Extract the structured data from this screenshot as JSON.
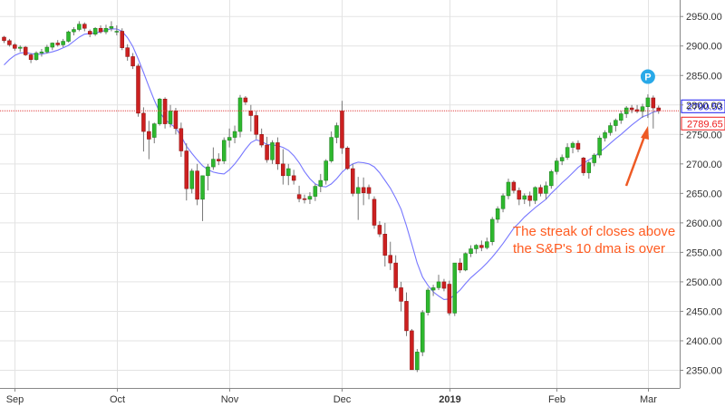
{
  "chart_data": {
    "type": "candlestick",
    "title": "",
    "xlabel": "",
    "ylabel": "",
    "ylim": [
      2320,
      2978
    ],
    "x_tick_labels": [
      "Sep",
      "Oct",
      "Nov",
      "Dec",
      "2019",
      "Feb",
      "Mar"
    ],
    "x_tick_bar_index": [
      2,
      21,
      42,
      63,
      83,
      103,
      120
    ],
    "y_tick_labels": [
      "2350.00",
      "2400.00",
      "2450.00",
      "2500.00",
      "2550.00",
      "2600.00",
      "2650.00",
      "2700.00",
      "2750.00",
      "2800.00",
      "2850.00",
      "2900.00",
      "2950.00"
    ],
    "y_ticks": [
      2350,
      2400,
      2450,
      2500,
      2550,
      2600,
      2650,
      2700,
      2750,
      2800,
      2850,
      2900,
      2950
    ],
    "grid": true,
    "series": [
      {
        "type": "candlestick",
        "up_color": "#2eb82e",
        "down_color": "#cc2020",
        "bars": [
          [
            2915,
            2917,
            2905,
            2909
          ],
          [
            2909,
            2912,
            2899,
            2902
          ],
          [
            2902,
            2905,
            2892,
            2896
          ],
          [
            2896,
            2901,
            2890,
            2898
          ],
          [
            2898,
            2900,
            2883,
            2885
          ],
          [
            2885,
            2888,
            2871,
            2877
          ],
          [
            2877,
            2891,
            2875,
            2888
          ],
          [
            2888,
            2895,
            2882,
            2890
          ],
          [
            2890,
            2902,
            2887,
            2898
          ],
          [
            2898,
            2906,
            2893,
            2905
          ],
          [
            2905,
            2910,
            2899,
            2902
          ],
          [
            2902,
            2912,
            2898,
            2908
          ],
          [
            2908,
            2926,
            2906,
            2924
          ],
          [
            2924,
            2932,
            2918,
            2928
          ],
          [
            2928,
            2942,
            2925,
            2937
          ],
          [
            2937,
            2940,
            2925,
            2930
          ],
          [
            2925,
            2928,
            2915,
            2920
          ],
          [
            2920,
            2932,
            2917,
            2930
          ],
          [
            2930,
            2935,
            2921,
            2924
          ],
          [
            2924,
            2936,
            2920,
            2930
          ],
          [
            2930,
            2942,
            2925,
            2933
          ],
          [
            2925,
            2935,
            2918,
            2925
          ],
          [
            2925,
            2930,
            2893,
            2897
          ],
          [
            2897,
            2903,
            2875,
            2882
          ],
          [
            2882,
            2888,
            2861,
            2866
          ],
          [
            2866,
            2870,
            2780,
            2786
          ],
          [
            2786,
            2796,
            2721,
            2755
          ],
          [
            2755,
            2773,
            2708,
            2742
          ],
          [
            2745,
            2770,
            2735,
            2768
          ],
          [
            2768,
            2812,
            2765,
            2810
          ],
          [
            2810,
            2813,
            2760,
            2768
          ],
          [
            2768,
            2800,
            2762,
            2790
          ],
          [
            2790,
            2795,
            2750,
            2760
          ],
          [
            2760,
            2770,
            2712,
            2722
          ],
          [
            2722,
            2735,
            2638,
            2658
          ],
          [
            2658,
            2692,
            2650,
            2688
          ],
          [
            2688,
            2700,
            2630,
            2640
          ],
          [
            2640,
            2680,
            2603,
            2680
          ],
          [
            2680,
            2700,
            2655,
            2695
          ],
          [
            2695,
            2728,
            2690,
            2708
          ],
          [
            2708,
            2718,
            2698,
            2705
          ],
          [
            2705,
            2745,
            2700,
            2740
          ],
          [
            2740,
            2760,
            2728,
            2745
          ],
          [
            2745,
            2765,
            2735,
            2755
          ],
          [
            2755,
            2817,
            2745,
            2812
          ],
          [
            2812,
            2815,
            2800,
            2805
          ],
          [
            2790,
            2800,
            2755,
            2782
          ],
          [
            2782,
            2790,
            2742,
            2750
          ],
          [
            2750,
            2760,
            2728,
            2732
          ],
          [
            2732,
            2746,
            2702,
            2707
          ],
          [
            2707,
            2740,
            2700,
            2736
          ],
          [
            2736,
            2745,
            2690,
            2700
          ],
          [
            2700,
            2725,
            2665,
            2680
          ],
          [
            2680,
            2700,
            2664,
            2692
          ],
          [
            2680,
            2690,
            2665,
            2672
          ],
          [
            2648,
            2663,
            2635,
            2641
          ],
          [
            2641,
            2648,
            2633,
            2640
          ],
          [
            2640,
            2652,
            2632,
            2645
          ],
          [
            2645,
            2666,
            2637,
            2662
          ],
          [
            2662,
            2683,
            2652,
            2672
          ],
          [
            2672,
            2708,
            2665,
            2705
          ],
          [
            2705,
            2755,
            2702,
            2745
          ],
          [
            2745,
            2770,
            2735,
            2765
          ],
          [
            2790,
            2807,
            2717,
            2727
          ],
          [
            2727,
            2730,
            2690,
            2692
          ],
          [
            2692,
            2700,
            2645,
            2650
          ],
          [
            2650,
            2678,
            2605,
            2660
          ],
          [
            2660,
            2677,
            2630,
            2651
          ],
          [
            2660,
            2665,
            2640,
            2650
          ],
          [
            2640,
            2645,
            2590,
            2596
          ],
          [
            2596,
            2603,
            2576,
            2581
          ],
          [
            2581,
            2600,
            2526,
            2545
          ],
          [
            2545,
            2568,
            2520,
            2532
          ],
          [
            2532,
            2545,
            2484,
            2490
          ],
          [
            2490,
            2500,
            2450,
            2467
          ],
          [
            2467,
            2482,
            2408,
            2417
          ],
          [
            2417,
            2420,
            2351,
            2351
          ],
          [
            2351,
            2386,
            2347,
            2381
          ],
          [
            2381,
            2452,
            2374,
            2448
          ],
          [
            2448,
            2490,
            2443,
            2486
          ],
          [
            2486,
            2495,
            2476,
            2490
          ],
          [
            2490,
            2512,
            2486,
            2500
          ],
          [
            2500,
            2505,
            2484,
            2489
          ],
          [
            2496,
            2502,
            2443,
            2447
          ],
          [
            2447,
            2532,
            2442,
            2532
          ],
          [
            2532,
            2540,
            2515,
            2520
          ],
          [
            2520,
            2550,
            2518,
            2548
          ],
          [
            2548,
            2562,
            2542,
            2556
          ],
          [
            2556,
            2564,
            2548,
            2562
          ],
          [
            2562,
            2570,
            2552,
            2558
          ],
          [
            2558,
            2575,
            2555,
            2568
          ],
          [
            2568,
            2610,
            2562,
            2606
          ],
          [
            2606,
            2628,
            2600,
            2624
          ],
          [
            2624,
            2650,
            2618,
            2646
          ],
          [
            2646,
            2675,
            2640,
            2669
          ],
          [
            2669,
            2672,
            2650,
            2655
          ],
          [
            2655,
            2660,
            2630,
            2640
          ],
          [
            2640,
            2650,
            2632,
            2646
          ],
          [
            2646,
            2653,
            2628,
            2638
          ],
          [
            2638,
            2662,
            2632,
            2660
          ],
          [
            2660,
            2665,
            2645,
            2650
          ],
          [
            2650,
            2670,
            2640,
            2663
          ],
          [
            2663,
            2690,
            2658,
            2687
          ],
          [
            2687,
            2710,
            2682,
            2705
          ],
          [
            2705,
            2716,
            2698,
            2711
          ],
          [
            2711,
            2735,
            2707,
            2728
          ],
          [
            2728,
            2738,
            2718,
            2735
          ],
          [
            2735,
            2740,
            2720,
            2725
          ],
          [
            2710,
            2712,
            2680,
            2685
          ],
          [
            2685,
            2705,
            2675,
            2702
          ],
          [
            2702,
            2718,
            2696,
            2715
          ],
          [
            2715,
            2748,
            2710,
            2744
          ],
          [
            2744,
            2757,
            2738,
            2753
          ],
          [
            2753,
            2770,
            2748,
            2765
          ],
          [
            2765,
            2777,
            2755,
            2774
          ],
          [
            2774,
            2790,
            2768,
            2785
          ],
          [
            2785,
            2798,
            2778,
            2795
          ],
          [
            2795,
            2800,
            2786,
            2792
          ],
          [
            2792,
            2800,
            2786,
            2789
          ],
          [
            2789,
            2802,
            2778,
            2797
          ],
          [
            2797,
            2818,
            2778,
            2812
          ],
          [
            2812,
            2816,
            2760,
            2795
          ],
          [
            2795,
            2799,
            2785,
            2790
          ]
        ]
      },
      {
        "name": "10 dma",
        "type": "line",
        "color": "#7777ff",
        "values": [
          2868,
          2877,
          2884,
          2888,
          2889,
          2887,
          2886,
          2886,
          2888,
          2890,
          2893,
          2897,
          2901,
          2908,
          2915,
          2920,
          2921,
          2922,
          2924,
          2927,
          2929,
          2929,
          2925,
          2914,
          2899,
          2878,
          2855,
          2831,
          2808,
          2788,
          2775,
          2768,
          2761,
          2747,
          2730,
          2718,
          2707,
          2697,
          2690,
          2686,
          2684,
          2683,
          2690,
          2700,
          2712,
          2725,
          2736,
          2741,
          2738,
          2733,
          2732,
          2731,
          2728,
          2723,
          2714,
          2702,
          2687,
          2675,
          2666,
          2662,
          2661,
          2666,
          2675,
          2686,
          2694,
          2700,
          2703,
          2702,
          2700,
          2695,
          2685,
          2672,
          2659,
          2642,
          2623,
          2595,
          2564,
          2532,
          2508,
          2494,
          2483,
          2476,
          2470,
          2471,
          2478,
          2486,
          2497,
          2507,
          2515,
          2523,
          2532,
          2542,
          2553,
          2565,
          2578,
          2591,
          2600,
          2610,
          2618,
          2626,
          2633,
          2640,
          2650,
          2659,
          2668,
          2676,
          2685,
          2694,
          2701,
          2707,
          2712,
          2720,
          2727,
          2735,
          2743,
          2750,
          2758,
          2766,
          2773,
          2780,
          2783,
          2788,
          2790
        ]
      }
    ],
    "markers": {
      "crosshair_value": 2790,
      "last_price_label": "2790.53",
      "last_price_color": "#1a1aee",
      "ma_value_label": "2789.65",
      "ma_value_color": "#ee1c1c",
      "event_badge": {
        "text": "P",
        "color": "#29a9e8",
        "bar_index": 120,
        "value": 2848
      }
    },
    "annotation": {
      "lines": [
        "The streak of closes above",
        "the S&P's 10 dma is over"
      ],
      "color": "#ff5a1f",
      "arrow_color": "#ee5a24"
    }
  }
}
